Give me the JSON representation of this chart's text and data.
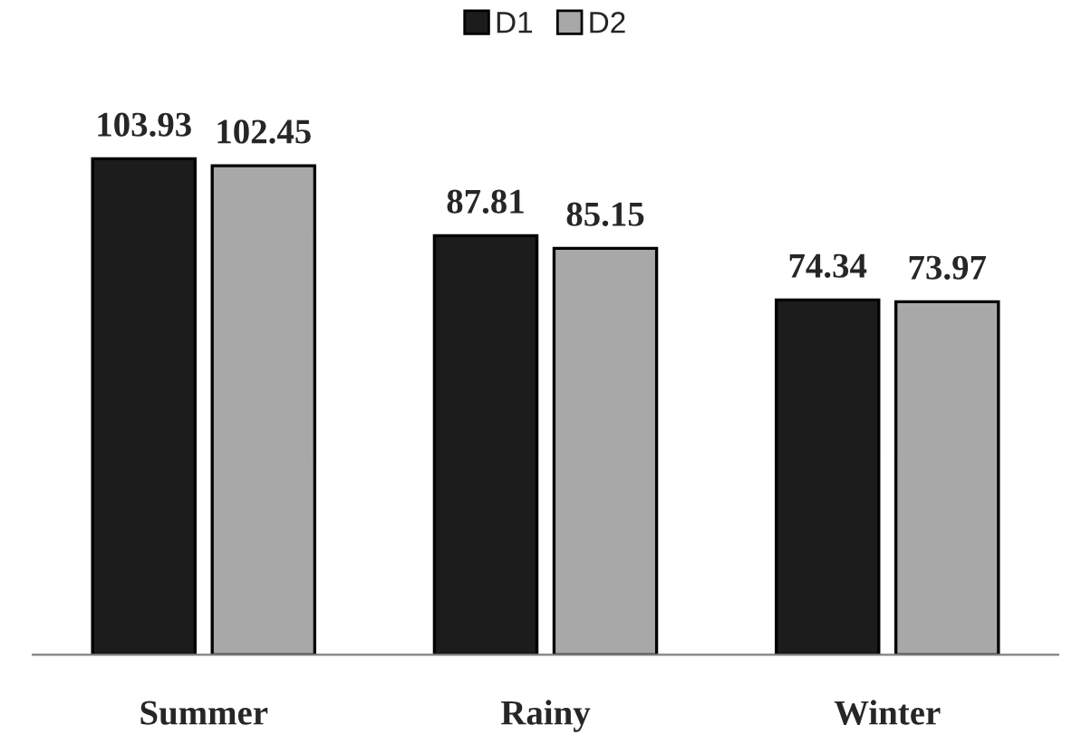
{
  "chart_data": {
    "type": "bar",
    "categories": [
      "Summer",
      "Rainy",
      "Winter"
    ],
    "series": [
      {
        "name": "D1",
        "color": "#1c1c1c",
        "values": [
          103.93,
          87.81,
          74.34
        ]
      },
      {
        "name": "D2",
        "color": "#a8a8a8",
        "values": [
          102.45,
          85.15,
          73.97
        ]
      }
    ],
    "data_labels": true,
    "legend": "top",
    "grid": false
  }
}
